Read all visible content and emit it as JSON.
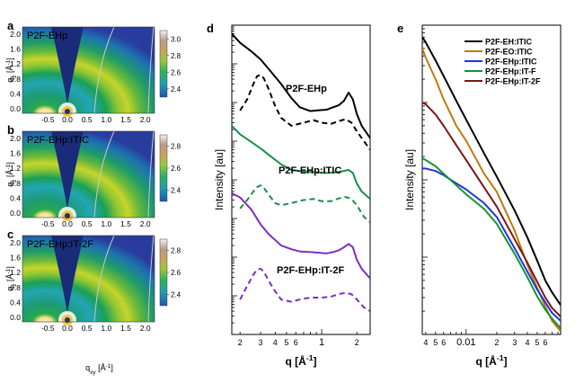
{
  "figure": {
    "panel_labels": [
      "a",
      "b",
      "c",
      "d",
      "e"
    ]
  },
  "giwaxs": {
    "panels": [
      {
        "letter": "a",
        "sample": "P2F-EHp",
        "colorbar_ticks": [
          "3.0",
          "2.8",
          "2.6",
          "2.4"
        ],
        "colorbar_values": [
          3.0,
          2.8,
          2.6,
          2.4
        ],
        "colorbar_range": [
          2.3,
          3.1
        ]
      },
      {
        "letter": "b",
        "sample": "P2F-EHp:ITIC",
        "colorbar_ticks": [
          "2.8",
          "2.6",
          "2.4"
        ],
        "colorbar_values": [
          2.8,
          2.6,
          2.4
        ],
        "colorbar_range": [
          2.3,
          2.9
        ]
      },
      {
        "letter": "c",
        "sample": "P2F-EHp:IT-2F",
        "colorbar_ticks": [
          "2.8",
          "2.6",
          "2.4"
        ],
        "colorbar_values": [
          2.8,
          2.6,
          2.4
        ],
        "colorbar_range": [
          2.3,
          2.9
        ]
      }
    ],
    "qz_ticks": [
      "2.0",
      "1.6",
      "1.2",
      "0.8",
      "0.4",
      "0.0"
    ],
    "qz_values": [
      2.0,
      1.6,
      1.2,
      0.8,
      0.4,
      0.0
    ],
    "qxy_ticks": [
      "-0.5",
      "0.0",
      "0.5",
      "1.0",
      "1.5",
      "2.0"
    ],
    "qxy_values": [
      -0.5,
      0.0,
      0.5,
      1.0,
      1.5,
      2.0
    ],
    "ylabel": "q",
    "ylabel_sub": "z",
    "ylabel_unit": " [Å",
    "ylabel_exp": "-1",
    "ylabel_close": "]",
    "xlabel": "q",
    "xlabel_sub": "xy",
    "xlabel_unit": " [Å",
    "xlabel_exp": "-1",
    "xlabel_close": "]",
    "colors": {
      "low": "#2a3f9e",
      "mid": "#21b24c",
      "high": "#e3d024",
      "top": "#f3f3f3"
    }
  },
  "chart_data": [
    {
      "type": "line",
      "panel": "d",
      "xscale": "log",
      "yscale": "log",
      "xlim": [
        0.17,
        2.6
      ],
      "ylim": [
        1e-07,
        10
      ],
      "xlabel": "q [Å",
      "xlabel_exp": "-1",
      "xlabel_close": "]",
      "ylabel": "Intensity [au]",
      "x_tick_labels": [
        "2",
        "3",
        "4",
        "5",
        "6",
        "1",
        "2"
      ],
      "x_tick_values": [
        0.2,
        0.3,
        0.4,
        0.5,
        0.6,
        1,
        2
      ],
      "series": [
        {
          "name": "P2F-EHp",
          "color": "#000000",
          "dash": false,
          "x": [
            0.17,
            0.2,
            0.25,
            0.3,
            0.35,
            0.45,
            0.55,
            0.65,
            0.8,
            0.95,
            1.1,
            1.25,
            1.4,
            1.55,
            1.7,
            1.85,
            2.0,
            2.2,
            2.6
          ],
          "y": [
            6.0,
            3.5,
            2.1,
            1.3,
            0.75,
            0.3,
            0.13,
            0.075,
            0.06,
            0.063,
            0.065,
            0.075,
            0.085,
            0.11,
            0.18,
            0.12,
            0.05,
            0.025,
            0.012
          ]
        },
        {
          "name": "P2F-EHp",
          "color": "#000000",
          "dash": true,
          "x": [
            0.2,
            0.23,
            0.26,
            0.28,
            0.3,
            0.32,
            0.35,
            0.4,
            0.45,
            0.55,
            0.7,
            0.85,
            1.0,
            1.2,
            1.4,
            1.6,
            1.8,
            2.0,
            2.3,
            2.6
          ],
          "y": [
            0.062,
            0.12,
            0.3,
            0.48,
            0.52,
            0.42,
            0.23,
            0.08,
            0.04,
            0.025,
            0.03,
            0.035,
            0.03,
            0.028,
            0.033,
            0.037,
            0.03,
            0.018,
            0.01,
            0.006
          ]
        },
        {
          "name": "P2F-EHp:ITIC",
          "color": "#15904a",
          "dash": false,
          "x": [
            0.17,
            0.2,
            0.25,
            0.3,
            0.35,
            0.45,
            0.55,
            0.65,
            0.8,
            0.95,
            1.1,
            1.25,
            1.4,
            1.55,
            1.7,
            1.85,
            2.0,
            2.2,
            2.6
          ],
          "y": [
            0.025,
            0.015,
            0.0095,
            0.0065,
            0.0045,
            0.0025,
            0.0018,
            0.0017,
            0.0016,
            0.00155,
            0.0015,
            0.00155,
            0.0016,
            0.0017,
            0.0018,
            0.0015,
            0.0008,
            0.0005,
            0.00032
          ]
        },
        {
          "name": "P2F-EHp:ITIC",
          "color": "#15904a",
          "dash": true,
          "x": [
            0.2,
            0.23,
            0.26,
            0.28,
            0.3,
            0.32,
            0.35,
            0.4,
            0.45,
            0.55,
            0.7,
            0.85,
            1.0,
            1.2,
            1.4,
            1.6,
            1.8,
            2.0,
            2.3,
            2.6
          ],
          "y": [
            0.00018,
            0.0003,
            0.0005,
            0.00065,
            0.00072,
            0.00062,
            0.00042,
            0.00025,
            0.00022,
            0.00025,
            0.0003,
            0.00032,
            0.00028,
            0.00028,
            0.00033,
            0.00036,
            0.00032,
            0.00022,
            0.00011,
            8e-05
          ]
        },
        {
          "name": "P2F-EHp:IT-2F",
          "color": "#7b2fc2",
          "dash": false,
          "x": [
            0.17,
            0.2,
            0.25,
            0.3,
            0.35,
            0.45,
            0.55,
            0.65,
            0.8,
            0.95,
            1.1,
            1.25,
            1.4,
            1.55,
            1.7,
            1.85,
            2.0,
            2.2,
            2.6
          ],
          "y": [
            0.00045,
            0.00035,
            0.00017,
            7e-05,
            4e-05,
            2e-05,
            1.6e-05,
            1.4e-05,
            1.35e-05,
            1.3e-05,
            1.25e-05,
            1.35e-05,
            1.5e-05,
            1.8e-05,
            2.2e-05,
            1.8e-05,
            8.5e-06,
            5e-06,
            2.8e-06
          ]
        },
        {
          "name": "P2F-EHp:IT-2F",
          "color": "#7b2fc2",
          "dash": true,
          "x": [
            0.2,
            0.23,
            0.26,
            0.28,
            0.3,
            0.32,
            0.35,
            0.4,
            0.45,
            0.55,
            0.7,
            0.85,
            1.0,
            1.2,
            1.4,
            1.6,
            1.8,
            2.0,
            2.3,
            2.6
          ],
          "y": [
            8e-07,
            1.8e-06,
            3.5e-06,
            4.8e-06,
            5e-06,
            4.2e-06,
            2.5e-06,
            1.3e-06,
            8e-07,
            7e-07,
            8.5e-07,
            9e-07,
            9e-07,
            9.5e-07,
            1.1e-06,
            1.2e-06,
            1.1e-06,
            8e-07,
            5e-07,
            4e-07
          ]
        }
      ],
      "annotations": [
        {
          "text": "P2F-EHp",
          "color": "#000000"
        },
        {
          "text": "P2F-EHp:ITIC",
          "color": "#15904a"
        },
        {
          "text": "P2F-EHp:IT-2F",
          "color": "#7b2fc2"
        }
      ]
    },
    {
      "type": "line",
      "panel": "e",
      "xscale": "log",
      "yscale": "log",
      "xlim": [
        0.0037,
        0.085
      ],
      "ylim": [
        0.001,
        10
      ],
      "xlabel": "q [Å",
      "xlabel_exp": "-1",
      "xlabel_close": "]",
      "ylabel": "Intensity [au]",
      "x_tick_labels": [
        "4",
        "5",
        "6",
        "0.01",
        "2",
        "3",
        "4",
        "5",
        "6"
      ],
      "x_tick_values": [
        0.004,
        0.005,
        0.006,
        0.01,
        0.02,
        0.03,
        0.04,
        0.05,
        0.06
      ],
      "legend": {
        "position": "top-right"
      },
      "series": [
        {
          "name": "P2F-EH:ITIC",
          "color": "#000000",
          "x": [
            0.0037,
            0.004,
            0.005,
            0.006,
            0.008,
            0.01,
            0.015,
            0.02,
            0.03,
            0.04,
            0.05,
            0.06,
            0.07,
            0.085
          ],
          "y": [
            7.0,
            6.0,
            3.5,
            2.2,
            1.05,
            0.6,
            0.22,
            0.11,
            0.04,
            0.018,
            0.009,
            0.005,
            0.0035,
            0.0024
          ]
        },
        {
          "name": "P2F-EO:ITIC",
          "color": "#c07a0a",
          "x": [
            0.0037,
            0.004,
            0.005,
            0.006,
            0.008,
            0.01,
            0.015,
            0.02,
            0.03,
            0.04,
            0.05,
            0.06,
            0.07,
            0.085
          ],
          "y": [
            5.0,
            3.8,
            2.0,
            1.1,
            0.5,
            0.32,
            0.12,
            0.07,
            0.022,
            0.008,
            0.004,
            0.0023,
            0.0015,
            0.0011
          ]
        },
        {
          "name": "P2F-EHp:ITIC",
          "color": "#1f33e6",
          "x": [
            0.0037,
            0.004,
            0.005,
            0.006,
            0.008,
            0.01,
            0.015,
            0.02,
            0.03,
            0.04,
            0.05,
            0.06,
            0.07,
            0.085
          ],
          "y": [
            0.14,
            0.14,
            0.13,
            0.115,
            0.09,
            0.075,
            0.05,
            0.033,
            0.013,
            0.0065,
            0.0038,
            0.0026,
            0.0019,
            0.0015
          ]
        },
        {
          "name": "P2F-EHp:IT-F",
          "color": "#12952f",
          "x": [
            0.0037,
            0.004,
            0.005,
            0.006,
            0.008,
            0.01,
            0.015,
            0.02,
            0.03,
            0.04,
            0.05,
            0.06,
            0.07,
            0.085
          ],
          "y": [
            0.19,
            0.18,
            0.15,
            0.12,
            0.085,
            0.065,
            0.042,
            0.027,
            0.011,
            0.0055,
            0.0031,
            0.0021,
            0.0016,
            0.0012
          ]
        },
        {
          "name": "P2F-EHp:IT-2F",
          "color": "#7a1717",
          "x": [
            0.0037,
            0.004,
            0.005,
            0.006,
            0.008,
            0.01,
            0.015,
            0.02,
            0.03,
            0.04,
            0.05,
            0.06,
            0.07,
            0.085
          ],
          "y": [
            1.0,
            0.95,
            0.7,
            0.5,
            0.28,
            0.18,
            0.08,
            0.045,
            0.017,
            0.0085,
            0.0048,
            0.003,
            0.0022,
            0.0017
          ]
        }
      ]
    }
  ]
}
